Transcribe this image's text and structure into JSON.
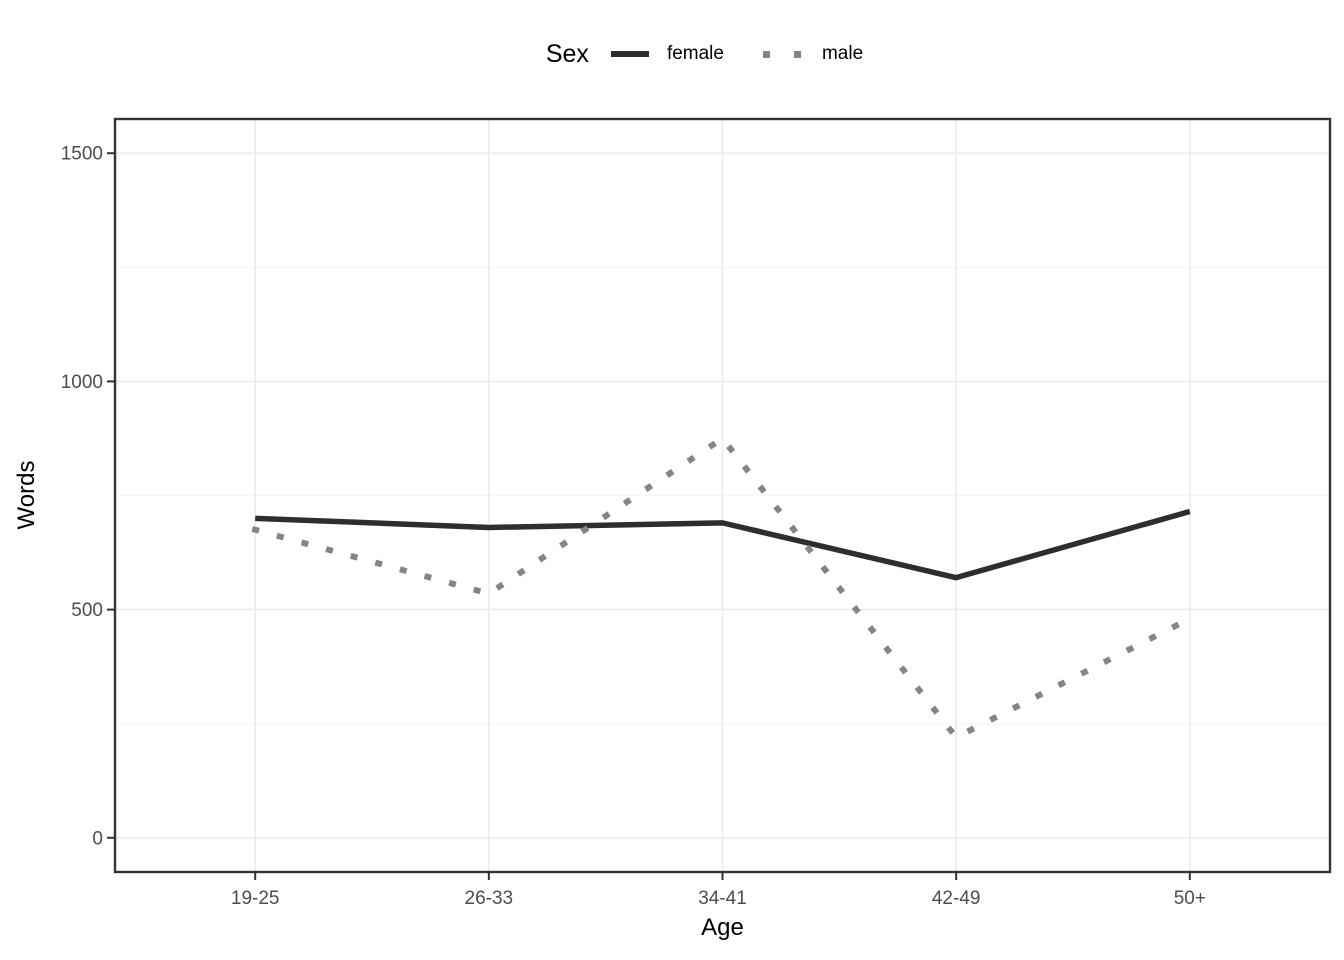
{
  "chart_data": {
    "type": "line",
    "categories": [
      "19-25",
      "26-33",
      "34-41",
      "42-49",
      "50+"
    ],
    "series": [
      {
        "name": "female",
        "values": [
          700,
          680,
          690,
          570,
          715
        ],
        "color": "#2e2e2e",
        "linetype": "solid"
      },
      {
        "name": "male",
        "values": [
          675,
          535,
          875,
          220,
          480
        ],
        "color": "#858585",
        "linetype": "dotted"
      }
    ],
    "xlabel": "Age",
    "ylabel": "Words",
    "ylim": [
      0,
      1500
    ],
    "y_major_ticks": [
      0,
      500,
      1000,
      1500
    ],
    "y_minor_ticks": [
      250,
      750,
      1250
    ],
    "y_tick_labels": [
      "0",
      "500",
      "1000",
      "1500"
    ],
    "legend": {
      "title": "Sex",
      "position": "top"
    },
    "grid": true,
    "colors": {
      "grid_major": "#ebebeb",
      "grid_minor": "#f5f5f5",
      "panel_border": "#333333",
      "tick_text": "#4d4d4d",
      "background": "#ffffff"
    }
  }
}
